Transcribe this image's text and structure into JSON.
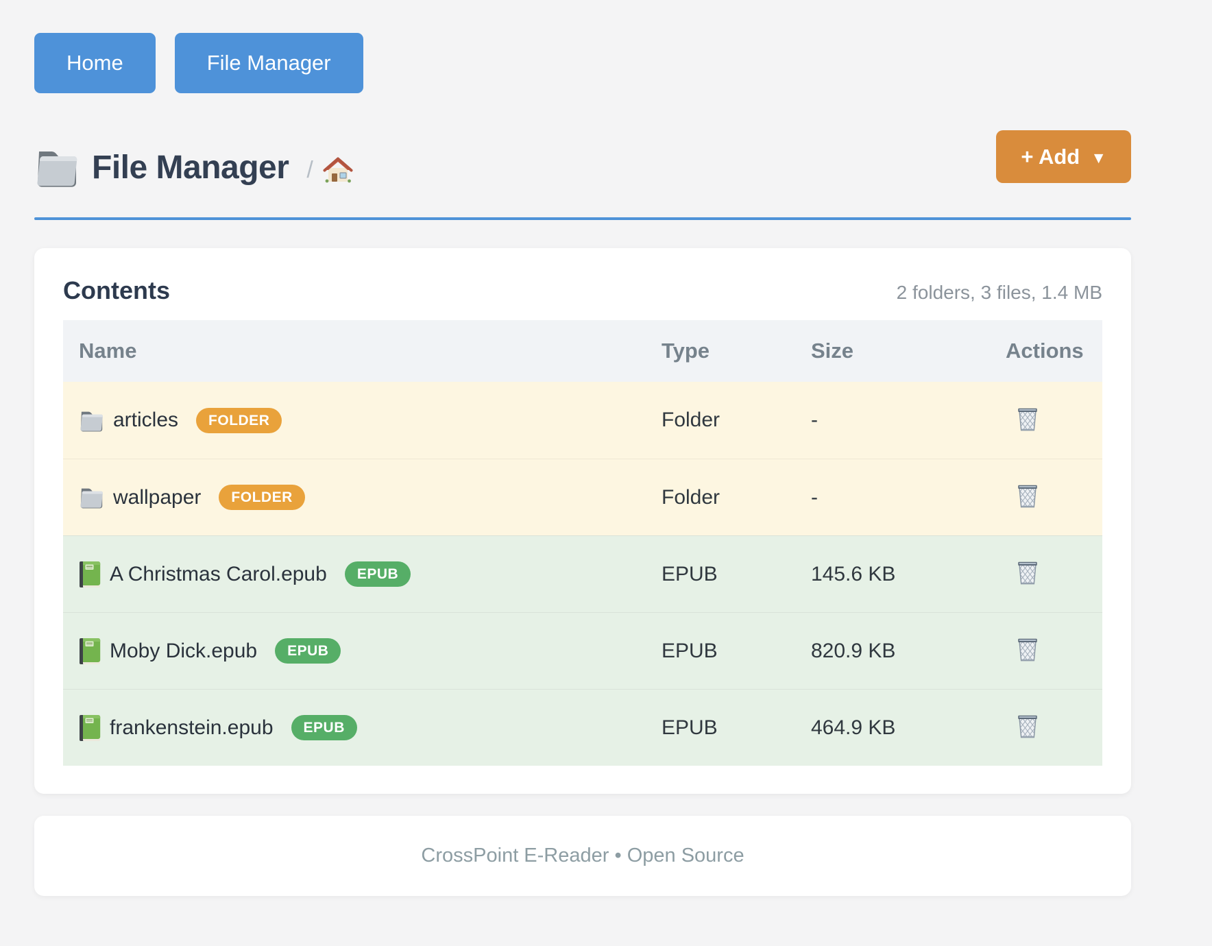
{
  "nav": {
    "buttons": [
      {
        "label": "Home"
      },
      {
        "label": "File Manager"
      }
    ]
  },
  "header": {
    "title": "File Manager",
    "title_icon": "folder-icon",
    "breadcrumb_separator": "/",
    "breadcrumb_home_icon": "home-icon",
    "add_button": {
      "label": "+ Add",
      "caret": "▼"
    }
  },
  "contents": {
    "heading": "Contents",
    "summary": "2 folders, 3 files, 1.4 MB",
    "table": {
      "columns": [
        "Name",
        "Type",
        "Size",
        "Actions"
      ],
      "action_icon": "trash-icon",
      "rows": [
        {
          "name": "articles",
          "kind": "folder",
          "icon": "folder-icon",
          "badge": "FOLDER",
          "type": "Folder",
          "size": "-"
        },
        {
          "name": "wallpaper",
          "kind": "folder",
          "icon": "folder-icon",
          "badge": "FOLDER",
          "type": "Folder",
          "size": "-"
        },
        {
          "name": "A Christmas Carol.epub",
          "kind": "epub",
          "icon": "green-book-icon",
          "badge": "EPUB",
          "type": "EPUB",
          "size": "145.6 KB"
        },
        {
          "name": "Moby Dick.epub",
          "kind": "epub",
          "icon": "green-book-icon",
          "badge": "EPUB",
          "type": "EPUB",
          "size": "820.9 KB"
        },
        {
          "name": "frankenstein.epub",
          "kind": "epub",
          "icon": "green-book-icon",
          "badge": "EPUB",
          "type": "EPUB",
          "size": "464.9 KB"
        }
      ]
    }
  },
  "footer": {
    "text": "CrossPoint E-Reader • Open Source"
  },
  "colors": {
    "page_bg": "#f4f4f5",
    "accent_blue": "#4e92d9",
    "rule_blue": "#4e92d8",
    "add_orange": "#d98c3c",
    "badge_folder": "#e9a23b",
    "badge_epub": "#56ae67",
    "row_folder_bg": "#fdf6e1",
    "row_epub_bg": "#e6f1e6",
    "thead_bg": "#f1f3f6",
    "title_text": "#333f52",
    "heading_text": "#2d3a4e",
    "muted_text": "#8b939b",
    "footer_text": "#8d9da3"
  }
}
